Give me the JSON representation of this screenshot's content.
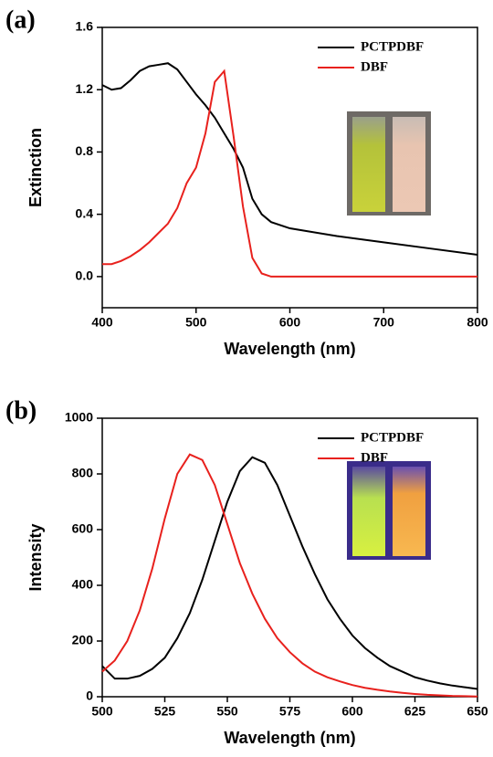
{
  "chart_data": [
    {
      "type": "line",
      "label": "(a)",
      "xlabel": "Wavelength (nm)",
      "ylabel": "Extinction",
      "x": [
        400,
        410,
        420,
        430,
        440,
        450,
        460,
        470,
        480,
        490,
        500,
        510,
        520,
        530,
        540,
        550,
        560,
        570,
        580,
        600,
        650,
        700,
        750,
        800
      ],
      "series": [
        {
          "name": "PCTPDBF",
          "color": "#000000",
          "values": [
            1.23,
            1.2,
            1.21,
            1.26,
            1.32,
            1.35,
            1.36,
            1.37,
            1.33,
            1.25,
            1.17,
            1.1,
            1.02,
            0.92,
            0.82,
            0.7,
            0.5,
            0.4,
            0.35,
            0.31,
            0.26,
            0.22,
            0.18,
            0.14
          ]
        },
        {
          "name": "DBF",
          "color": "#e8211d",
          "values": [
            0.08,
            0.08,
            0.1,
            0.13,
            0.17,
            0.22,
            0.28,
            0.34,
            0.44,
            0.6,
            0.7,
            0.92,
            1.25,
            1.32,
            0.9,
            0.45,
            0.12,
            0.02,
            0.0,
            0.0,
            0.0,
            0.0,
            0.0,
            0.0
          ]
        }
      ],
      "xlim": [
        400,
        800
      ],
      "xticks": [
        400,
        500,
        600,
        700,
        800
      ],
      "ylim": [
        -0.2,
        1.6
      ],
      "yticks": [
        {
          "value": 0,
          "label": "0.0"
        },
        0.4,
        0.8,
        1.2,
        1.6
      ],
      "legend": "upper right"
    },
    {
      "type": "line",
      "label": "(b)",
      "xlabel": "Wavelength (nm)",
      "ylabel": "Intensity",
      "x": [
        500,
        505,
        510,
        515,
        520,
        525,
        530,
        535,
        540,
        545,
        550,
        555,
        560,
        565,
        570,
        575,
        580,
        585,
        590,
        595,
        600,
        605,
        610,
        615,
        620,
        625,
        630,
        635,
        640,
        645,
        650
      ],
      "series": [
        {
          "name": "PCTPDBF",
          "color": "#000000",
          "values": [
            110,
            65,
            65,
            75,
            100,
            140,
            210,
            300,
            420,
            560,
            700,
            810,
            860,
            840,
            760,
            650,
            540,
            440,
            350,
            280,
            220,
            175,
            140,
            110,
            90,
            70,
            58,
            48,
            40,
            34,
            28
          ]
        },
        {
          "name": "DBF",
          "color": "#e8211d",
          "values": [
            90,
            130,
            200,
            310,
            460,
            640,
            800,
            870,
            850,
            760,
            620,
            480,
            370,
            280,
            210,
            160,
            120,
            90,
            70,
            55,
            42,
            32,
            25,
            19,
            14,
            10,
            7,
            5,
            3,
            2,
            1
          ]
        }
      ],
      "xlim": [
        500,
        650
      ],
      "xticks": [
        500,
        525,
        550,
        575,
        600,
        625,
        650
      ],
      "ylim": [
        0,
        1000
      ],
      "yticks": [
        0,
        200,
        400,
        600,
        800,
        1000
      ],
      "legend": "upper right"
    }
  ]
}
